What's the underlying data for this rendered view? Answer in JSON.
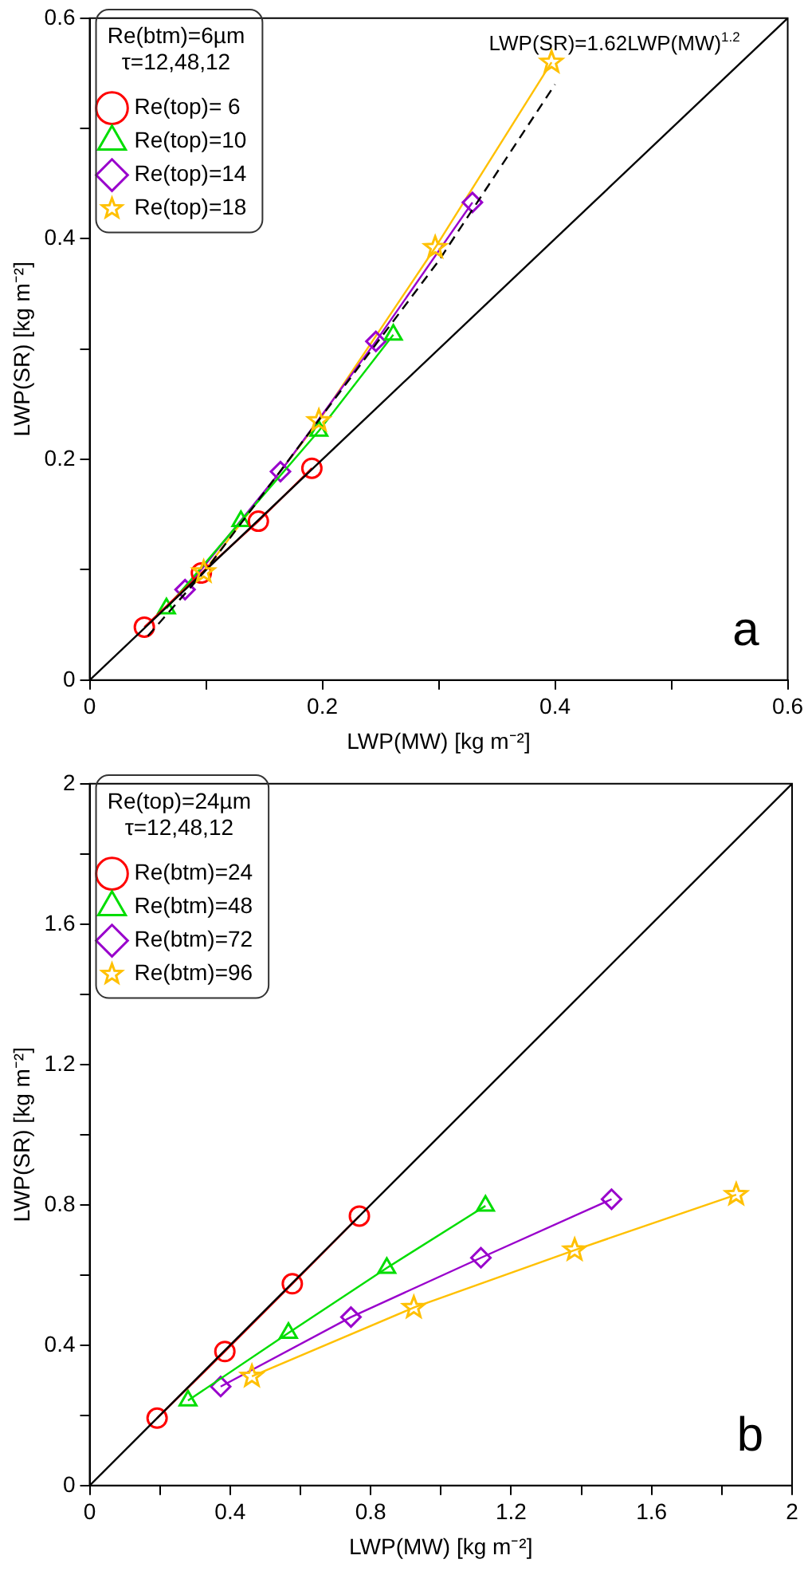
{
  "chart_data": [
    {
      "type": "line",
      "xlabel": "LWP(MW) [kg m⁻²]",
      "ylabel": "LWP(SR) [kg m⁻²]",
      "legend_title": "Re(btm)=6µm\nτ=12,48,12",
      "legend": "top left",
      "annotations": [
        "LWP(SR)=1.62LWP(MW)$^{1.2}$",
        "a"
      ],
      "xlim": [
        0,
        0.6
      ],
      "ylim": [
        0,
        0.6
      ],
      "xticks": [
        0,
        {
          "value": 0.1,
          "label": null
        },
        0.2,
        {
          "value": 0.3,
          "label": null
        },
        0.4,
        {
          "value": 0.5,
          "label": null
        },
        0.6
      ],
      "yticks": [
        0,
        {
          "value": 0.1,
          "label": null
        },
        0.2,
        {
          "value": 0.3,
          "label": null
        },
        0.4,
        {
          "value": 0.5,
          "label": null
        },
        0.6
      ],
      "series": [
        {
          "color": "#000000",
          "marker": "none",
          "line_style": "solid",
          "x": [
            0,
            0.6
          ],
          "values": [
            0,
            0.6
          ]
        },
        {
          "color": "#000000",
          "marker": "none",
          "line_style": "dashed",
          "x": [
            0.05,
            0.1,
            0.2,
            0.3,
            0.4
          ],
          "values": [
            0.04,
            0.1,
            0.24,
            0.38,
            0.54
          ]
        },
        {
          "name": "Re(top)= 6",
          "color": "#ff0000",
          "marker": "circle",
          "line_style": "solid",
          "x": [
            0.047,
            0.096,
            0.145,
            0.191
          ],
          "values": [
            0.048,
            0.097,
            0.144,
            0.192
          ]
        },
        {
          "name": "Re(top)=10",
          "color": "#00dd00",
          "marker": "triangle",
          "line_style": "solid",
          "x": [
            0.066,
            0.13,
            0.197,
            0.261
          ],
          "values": [
            0.065,
            0.144,
            0.226,
            0.313
          ]
        },
        {
          "name": "Re(top)=14",
          "color": "#9900cc",
          "marker": "diamond",
          "line_style": "solid",
          "x": [
            0.082,
            0.164,
            0.246,
            0.329
          ],
          "values": [
            0.082,
            0.189,
            0.307,
            0.433
          ]
        },
        {
          "name": "Re(top)=18",
          "color": "#ffc000",
          "marker": "star",
          "line_style": "solid",
          "x": [
            0.098,
            0.197,
            0.297,
            0.397
          ],
          "values": [
            0.098,
            0.235,
            0.392,
            0.56
          ]
        }
      ]
    },
    {
      "type": "line",
      "xlabel": "LWP(MW) [kg m⁻²]",
      "ylabel": "LWP(SR) [kg m⁻²]",
      "legend_title": "Re(top)=24µm\nτ=12,48,12",
      "legend": "top left",
      "annotations": [
        "b"
      ],
      "xlim": [
        0,
        2
      ],
      "ylim": [
        0,
        2
      ],
      "xticks": [
        0,
        {
          "value": 0.2,
          "label": null
        },
        0.4,
        {
          "value": 0.6,
          "label": null
        },
        0.8,
        {
          "value": 1,
          "label": null
        },
        1.2,
        {
          "value": 1.4,
          "label": null
        },
        1.6,
        {
          "value": 1.8,
          "label": null
        },
        2
      ],
      "yticks": [
        0,
        {
          "value": 0.2,
          "label": null
        },
        0.4,
        {
          "value": 0.6,
          "label": null
        },
        0.8,
        {
          "value": 1,
          "label": null
        },
        1.2,
        {
          "value": 1.4,
          "label": null
        },
        1.6,
        {
          "value": 1.8,
          "label": null
        },
        2
      ],
      "series": [
        {
          "color": "#000000",
          "marker": "none",
          "line_style": "solid",
          "x": [
            0,
            2
          ],
          "values": [
            0,
            2
          ]
        },
        {
          "name": "Re(btm)=24",
          "color": "#ff0000",
          "marker": "circle",
          "line_style": "solid",
          "x": [
            0.192,
            0.385,
            0.577,
            0.768
          ],
          "values": [
            0.192,
            0.382,
            0.575,
            0.768
          ]
        },
        {
          "name": "Re(btm)=48",
          "color": "#00dd00",
          "marker": "triangle",
          "line_style": "solid",
          "x": [
            0.28,
            0.566,
            0.846,
            1.127
          ],
          "values": [
            0.242,
            0.435,
            0.62,
            0.797
          ]
        },
        {
          "name": "Re(btm)=72",
          "color": "#9900cc",
          "marker": "diamond",
          "line_style": "solid",
          "x": [
            0.373,
            0.744,
            1.114,
            1.486
          ],
          "values": [
            0.282,
            0.48,
            0.649,
            0.816
          ]
        },
        {
          "name": "Re(btm)=96",
          "color": "#ffc000",
          "marker": "star",
          "line_style": "solid",
          "x": [
            0.462,
            0.923,
            1.381,
            1.841
          ],
          "values": [
            0.311,
            0.507,
            0.671,
            0.829
          ]
        }
      ]
    }
  ]
}
